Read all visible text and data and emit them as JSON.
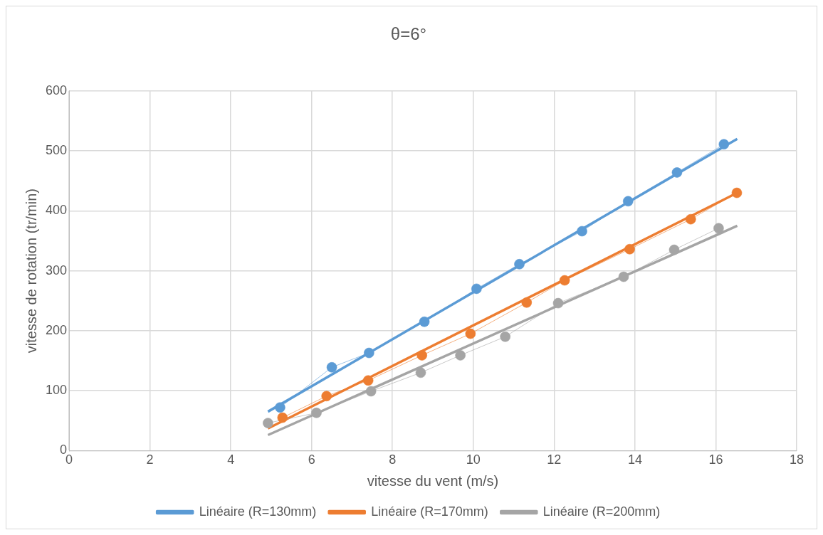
{
  "chart_data": {
    "type": "line",
    "title": "θ=6°",
    "xlabel": "vitesse du vent (m/s)",
    "ylabel": "vitesse de rotation (tr/min)",
    "xlim": [
      0,
      18
    ],
    "xticks": [
      0,
      2,
      4,
      6,
      8,
      10,
      12,
      14,
      16,
      18
    ],
    "ylim": [
      0,
      600
    ],
    "yticks": [
      0,
      100,
      200,
      300,
      400,
      500,
      600
    ],
    "grid": true,
    "legend": "bottom",
    "series": [
      {
        "color": "#5b9bd5",
        "marker": "circle",
        "x": [
          5.22,
          6.5,
          7.42,
          8.79,
          10.08,
          11.14,
          12.69,
          13.83,
          15.04,
          16.2
        ],
        "values": [
          72,
          139,
          163,
          215,
          270,
          311,
          366,
          416,
          464,
          511
        ]
      },
      {
        "color": "#ed7d31",
        "marker": "circle",
        "x": [
          5.28,
          6.37,
          7.4,
          8.73,
          9.93,
          11.32,
          12.26,
          13.87,
          15.38,
          16.52
        ],
        "values": [
          55,
          91,
          117,
          159,
          195,
          247,
          284,
          336,
          386,
          430
        ]
      },
      {
        "color": "#a5a5a5",
        "marker": "circle",
        "x": [
          4.92,
          6.12,
          7.47,
          8.7,
          9.68,
          10.79,
          12.1,
          13.72,
          14.97,
          16.07
        ],
        "values": [
          46,
          63,
          99,
          130,
          159,
          190,
          246,
          290,
          335,
          371
        ]
      },
      {
        "name": "Linéaire (R=130mm)",
        "color": "#5b9bd5",
        "marker": "none",
        "x": [
          4.92,
          16.53
        ],
        "values": [
          65,
          520
        ]
      },
      {
        "name": "Linéaire (R=170mm)",
        "color": "#ed7d31",
        "marker": "none",
        "x": [
          4.92,
          16.53
        ],
        "values": [
          37,
          430
        ]
      },
      {
        "name": "Linéaire (R=200mm)",
        "color": "#a5a5a5",
        "marker": "none",
        "x": [
          4.92,
          16.53
        ],
        "values": [
          26,
          375
        ]
      }
    ]
  }
}
